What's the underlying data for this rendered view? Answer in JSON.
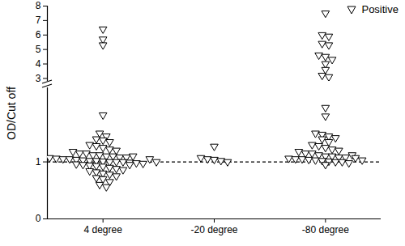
{
  "chart_data": [
    {
      "type": "scatter",
      "categories": [
        "4 degree",
        "-20 degree",
        "-80 degree"
      ],
      "ylim": [
        2.8,
        8
      ],
      "yticks": [
        3,
        4,
        5,
        6,
        7,
        8
      ],
      "tick_labels": "y",
      "legend": "top-right",
      "series": [
        {
          "name": "Positive",
          "color": "#000000",
          "marker": "triangle-down",
          "values": [
            [
              6.4,
              5.7,
              5.3
            ],
            [],
            [
              7.5,
              6.0,
              5.9,
              5.4,
              5.3,
              4.6,
              4.5,
              4.3,
              4.0,
              3.6,
              3.2,
              3.1
            ]
          ]
        }
      ]
    },
    {
      "type": "scatter",
      "categories": [
        "4 degree",
        "-20 degree",
        "-80 degree"
      ],
      "ylim": [
        0,
        2.3
      ],
      "yticks": [
        0,
        1
      ],
      "y_label": "OD/Cut off",
      "hline": 1,
      "series": [
        {
          "name": "Positive",
          "color": "#000000",
          "marker": "triangle-down",
          "values": [
            [
              1.82,
              1.5,
              1.45,
              1.4,
              1.38,
              1.35,
              1.3,
              1.28,
              1.25,
              1.22,
              1.2,
              1.18,
              1.15,
              1.15,
              1.12,
              1.12,
              1.1,
              1.1,
              1.08,
              1.08,
              1.07,
              1.06,
              1.05,
              1.05,
              1.04,
              1.03,
              1.02,
              1.02,
              1.01,
              1.0,
              1.0,
              1.0,
              0.99,
              0.98,
              0.97,
              0.96,
              0.95,
              0.94,
              0.93,
              0.92,
              0.9,
              0.88,
              0.86,
              0.84,
              0.82,
              0.8,
              0.78,
              0.75,
              0.72,
              0.7,
              0.65,
              0.6,
              0.56,
              1.1,
              1.05,
              1.0,
              0.95
            ],
            [
              1.27,
              1.07,
              1.05,
              1.04,
              1.02,
              1.0
            ],
            [
              1.95,
              1.8,
              1.5,
              1.48,
              1.45,
              1.42,
              1.4,
              1.35,
              1.3,
              1.28,
              1.25,
              1.22,
              1.2,
              1.18,
              1.15,
              1.15,
              1.12,
              1.1,
              1.1,
              1.08,
              1.08,
              1.06,
              1.05,
              1.05,
              1.04,
              1.03,
              1.02,
              1.01,
              1.0,
              1.0,
              0.98,
              0.95,
              1.12,
              1.07,
              1.03
            ]
          ]
        }
      ]
    }
  ]
}
